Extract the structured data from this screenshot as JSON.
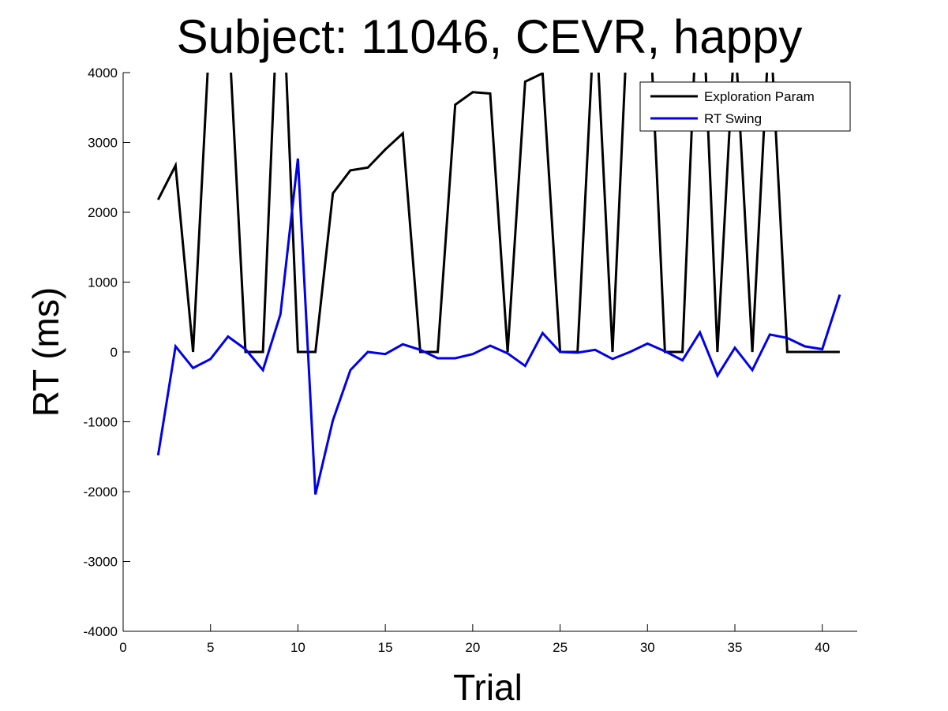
{
  "chart_data": {
    "type": "line",
    "title": "Subject: 11046, CEVR, happy",
    "xlabel": "Trial",
    "ylabel": "RT (ms)",
    "xlim": [
      0,
      42
    ],
    "ylim": [
      -4000,
      4000
    ],
    "xticks": [
      0,
      5,
      10,
      15,
      20,
      25,
      30,
      35,
      40
    ],
    "yticks": [
      -4000,
      -3000,
      -2000,
      -1000,
      0,
      1000,
      2000,
      3000,
      4000
    ],
    "grid": false,
    "legend_position": "top-right",
    "series": [
      {
        "name": "Exploration Param",
        "color": "#000000",
        "x": [
          2,
          3,
          4,
          5,
          6,
          7,
          8,
          9,
          10,
          11,
          12,
          13,
          14,
          15,
          16,
          17,
          18,
          19,
          20,
          21,
          22,
          23,
          24,
          25,
          26,
          27,
          28,
          29,
          30,
          31,
          32,
          33,
          34,
          35,
          36,
          37,
          38,
          39,
          40,
          41
        ],
        "values": [
          2180,
          2670,
          0,
          4800,
          4800,
          0,
          0,
          6000,
          0,
          0,
          2270,
          2600,
          2640,
          2900,
          3130,
          0,
          0,
          3540,
          3720,
          3700,
          0,
          3870,
          3990,
          0,
          0,
          5000,
          0,
          5500,
          5500,
          0,
          0,
          6000,
          0,
          4600,
          0,
          4800,
          0,
          0,
          0,
          0
        ]
      },
      {
        "name": "RT Swing",
        "color": "#0000ee",
        "x": [
          2,
          3,
          4,
          5,
          6,
          7,
          8,
          9,
          10,
          11,
          12,
          13,
          14,
          15,
          16,
          17,
          18,
          19,
          20,
          21,
          22,
          23,
          24,
          25,
          26,
          27,
          28,
          29,
          30,
          31,
          32,
          33,
          34,
          35,
          36,
          37,
          38,
          39,
          40,
          41
        ],
        "values": [
          -1480,
          80,
          -230,
          -100,
          220,
          40,
          -260,
          540,
          2770,
          -2040,
          -980,
          -260,
          0,
          -30,
          110,
          30,
          -90,
          -90,
          -30,
          90,
          -20,
          -200,
          270,
          0,
          -10,
          30,
          -100,
          0,
          120,
          10,
          -120,
          280,
          -340,
          60,
          -260,
          250,
          200,
          80,
          40,
          820
        ]
      }
    ]
  }
}
